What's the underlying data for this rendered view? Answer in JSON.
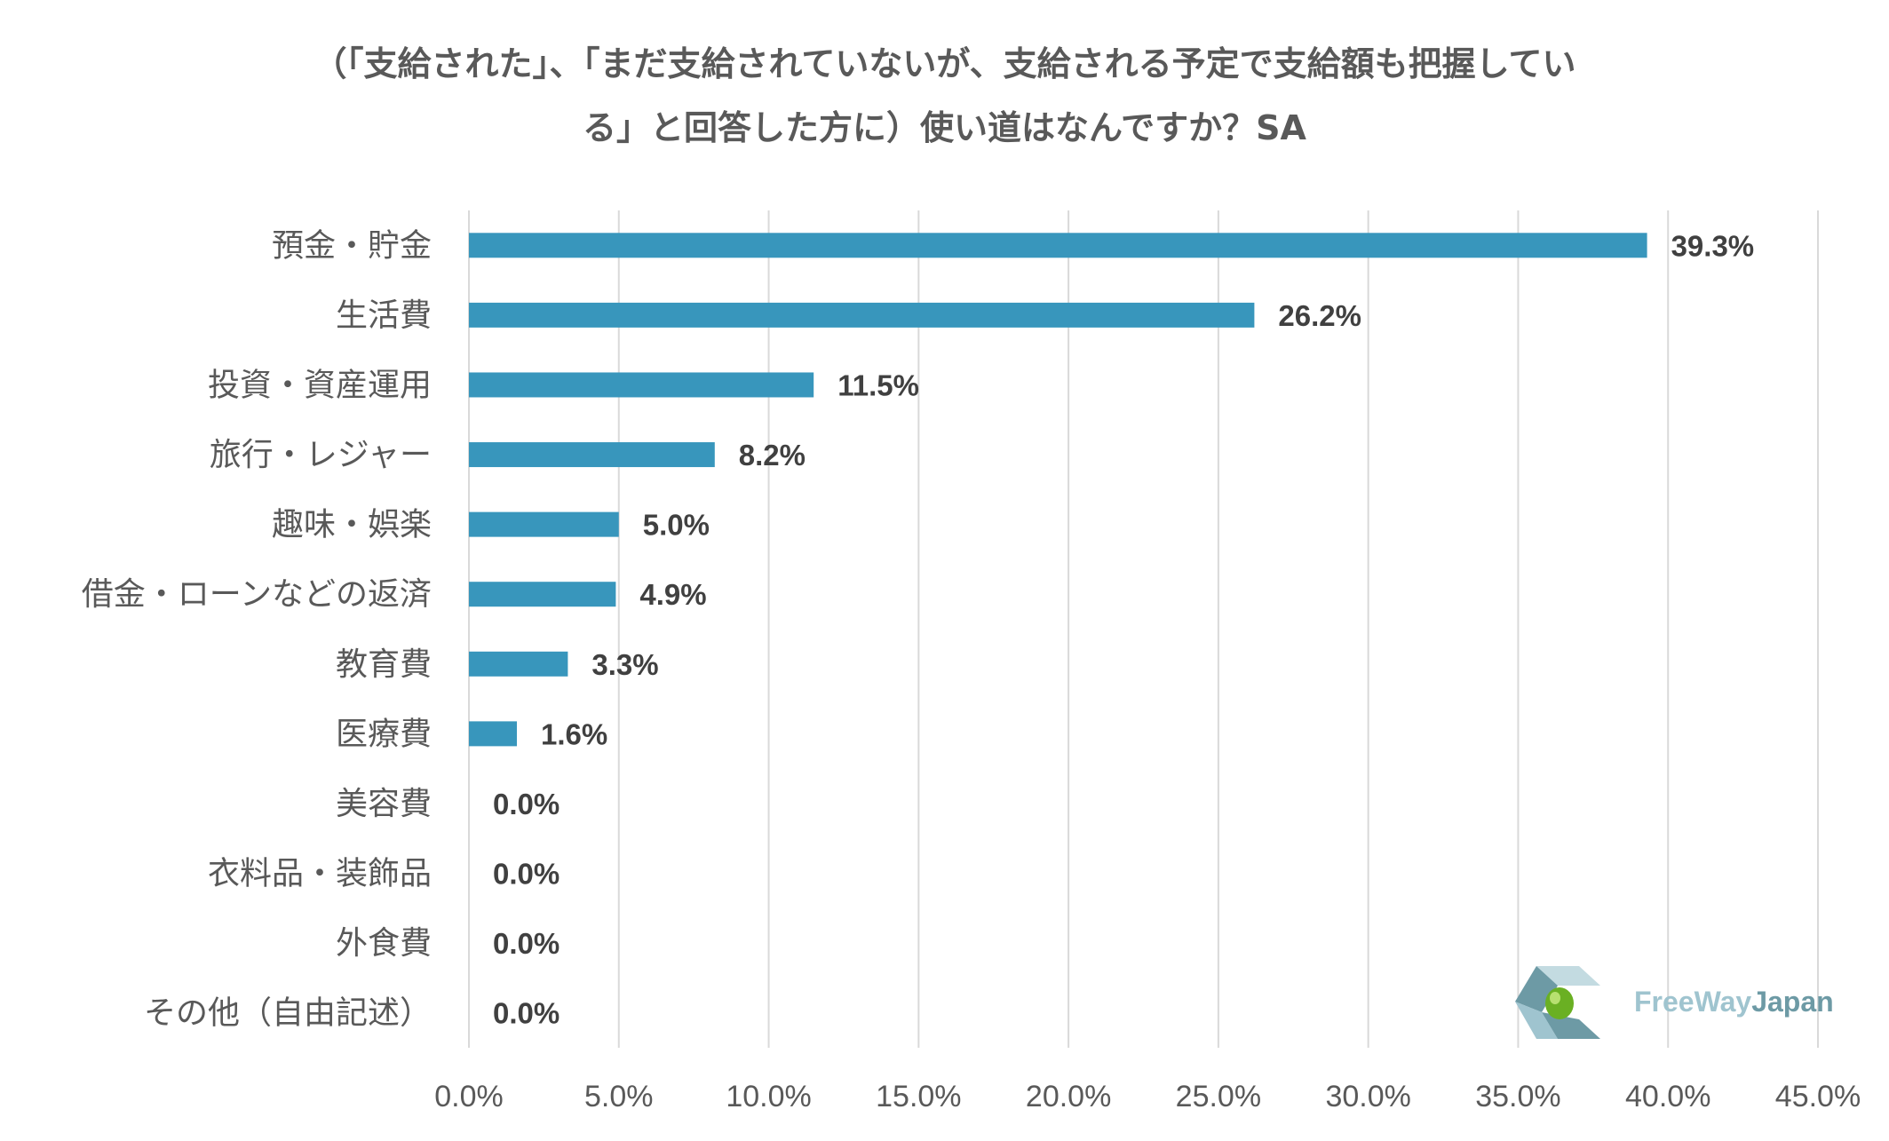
{
  "chart_data": {
    "type": "bar",
    "orientation": "horizontal",
    "title_lines": [
      "（「支給された」、「まだ支給されていないが、支給される予定で支給額も把握してい",
      "る」と回答した方に）使い道はなんですか？SA"
    ],
    "categories": [
      "預金・貯金",
      "生活費",
      "投資・資産運用",
      "旅行・レジャー",
      "趣味・娯楽",
      "借金・ローンなどの返済",
      "教育費",
      "医療費",
      "美容費",
      "衣料品・装飾品",
      "外食費",
      "その他（自由記述）"
    ],
    "values": [
      39.3,
      26.2,
      11.5,
      8.2,
      5.0,
      4.9,
      3.3,
      1.6,
      0.0,
      0.0,
      0.0,
      0.0
    ],
    "value_labels": [
      "39.3%",
      "26.2%",
      "11.5%",
      "8.2%",
      "5.0%",
      "4.9%",
      "3.3%",
      "1.6%",
      "0.0%",
      "0.0%",
      "0.0%",
      "0.0%"
    ],
    "xlim": [
      0,
      45
    ],
    "xticks": [
      0,
      5,
      10,
      15,
      20,
      25,
      30,
      35,
      40,
      45
    ],
    "xtick_labels": [
      "0.0%",
      "5.0%",
      "10.0%",
      "15.0%",
      "20.0%",
      "25.0%",
      "30.0%",
      "35.0%",
      "40.0%",
      "45.0%"
    ],
    "grid": true,
    "bar_color": "#3896bc",
    "grid_color": "#d9d9d9",
    "legend": "none"
  },
  "logo": {
    "part1": "FreeWay",
    "part2": "Japan"
  }
}
